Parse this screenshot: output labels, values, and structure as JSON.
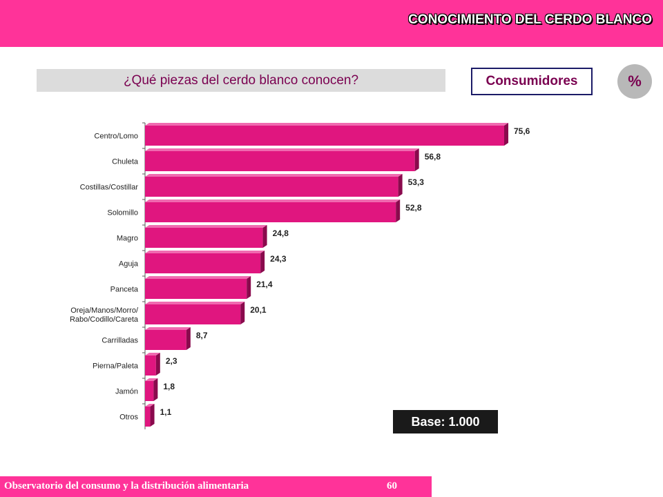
{
  "header": {
    "title": "CONOCIMIENTO DEL CERDO BLANCO"
  },
  "question": "¿Qué piezas del cerdo blanco conocen?",
  "segment": "Consumidores",
  "unit_badge": "%",
  "base": "Base: 1.000",
  "footer": {
    "text": "Observatorio del consumo y la distribución alimentaria",
    "page": "60"
  },
  "colors": {
    "bar": "#e0167f",
    "bar_dark": "#8a0a4d",
    "bar_top": "#f06ab0",
    "header": "#ff3399"
  },
  "chart_data": {
    "type": "bar",
    "orientation": "horizontal",
    "categories": [
      "Centro/Lomo",
      "Chuleta",
      "Costillas/Costillar",
      "Solomillo",
      "Magro",
      "Aguja",
      "Panceta",
      "Oreja/Manos/Morro/ Rabo/Codillo/Careta",
      "Carrilladas",
      "Pierna/Paleta",
      "Jamón",
      "Otros"
    ],
    "values": [
      75.6,
      56.8,
      53.3,
      52.8,
      24.8,
      24.3,
      21.4,
      20.1,
      8.7,
      2.3,
      1.8,
      1.1
    ],
    "value_labels": [
      "75,6",
      "56,8",
      "53,3",
      "52,8",
      "24,8",
      "24,3",
      "21,4",
      "20,1",
      "8,7",
      "2,3",
      "1,8",
      "1,1"
    ],
    "xlim": [
      0,
      80
    ]
  }
}
